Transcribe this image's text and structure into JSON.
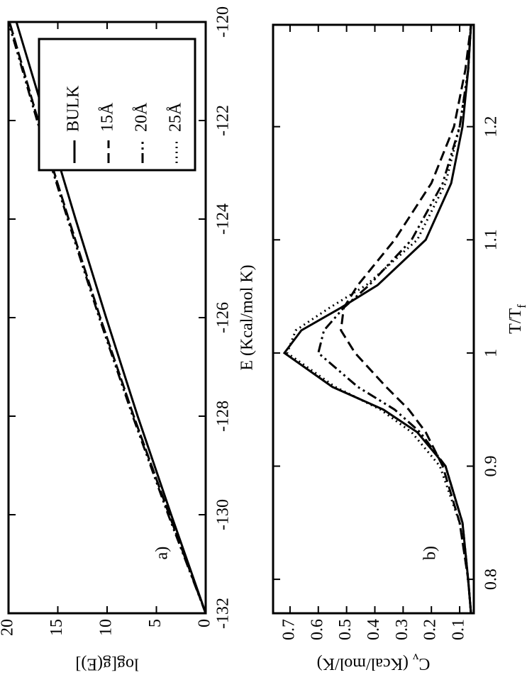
{
  "chart_data": [
    {
      "type": "line",
      "panel_label": "a)",
      "x_label": "E (Kcal/mol K)",
      "y_label": "log[g(E)]",
      "x": [
        -132,
        -130,
        -128,
        -126,
        -124,
        -122,
        -120
      ],
      "xlim": [
        -132,
        -120
      ],
      "ylim": [
        0,
        20
      ],
      "xticks": [
        -132,
        -130,
        -128,
        -126,
        -124,
        -122,
        -120
      ],
      "yticks": [
        0,
        5,
        10,
        15,
        20
      ],
      "legend": "upper right",
      "series": [
        {
          "name": "BULK",
          "color": "#000000",
          "style": "solid",
          "values": [
            0,
            3.5,
            6.9,
            10.1,
            13.2,
            16.2,
            19.2
          ]
        },
        {
          "name": "15Å",
          "color": "#000000",
          "style": "dashed",
          "values": [
            0,
            3.7,
            7.3,
            10.7,
            13.9,
            17.0,
            19.9
          ]
        },
        {
          "name": "20Å",
          "color": "#000000",
          "style": "dashdot",
          "values": [
            0,
            3.8,
            7.4,
            10.8,
            14.0,
            17.1,
            20
          ]
        },
        {
          "name": "25Å",
          "color": "#000000",
          "style": "dotted",
          "values": [
            0,
            3.7,
            7.3,
            10.7,
            13.9,
            17.0,
            19.9
          ]
        }
      ]
    },
    {
      "type": "line",
      "panel_label": "b)",
      "x_label": {
        "text": "T/T",
        "sub": "f"
      },
      "y_label": {
        "text": "C",
        "sub": "v",
        "rest": " (Kcal/mol/K)"
      },
      "x": [
        0.77,
        0.8,
        0.85,
        0.9,
        0.93,
        0.95,
        0.97,
        1.0,
        1.02,
        1.04,
        1.06,
        1.1,
        1.15,
        1.2,
        1.25,
        1.29
      ],
      "xlim": [
        0.77,
        1.29
      ],
      "ylim": [
        0.05,
        0.76
      ],
      "xticks": [
        0.8,
        0.9,
        1,
        1.1,
        1.2
      ],
      "yticks": [
        0.1,
        0.2,
        0.3,
        0.4,
        0.5,
        0.6,
        0.7
      ],
      "series": [
        {
          "color": "#000000",
          "style": "solid",
          "values": [
            0.06,
            0.07,
            0.09,
            0.15,
            0.25,
            0.37,
            0.55,
            0.72,
            0.66,
            0.52,
            0.39,
            0.22,
            0.13,
            0.09,
            0.07,
            0.06
          ]
        },
        {
          "color": "#000000",
          "style": "dashed",
          "values": [
            0.06,
            0.07,
            0.1,
            0.16,
            0.22,
            0.28,
            0.36,
            0.47,
            0.52,
            0.51,
            0.46,
            0.33,
            0.2,
            0.12,
            0.08,
            0.06
          ]
        },
        {
          "color": "#000000",
          "style": "dashdot",
          "values": [
            0.06,
            0.07,
            0.09,
            0.15,
            0.24,
            0.33,
            0.46,
            0.6,
            0.58,
            0.51,
            0.42,
            0.27,
            0.16,
            0.1,
            0.07,
            0.06
          ]
        },
        {
          "color": "#000000",
          "style": "dotted",
          "values": [
            0.06,
            0.07,
            0.1,
            0.17,
            0.27,
            0.38,
            0.54,
            0.71,
            0.68,
            0.56,
            0.43,
            0.25,
            0.15,
            0.1,
            0.07,
            0.06
          ]
        }
      ]
    }
  ]
}
